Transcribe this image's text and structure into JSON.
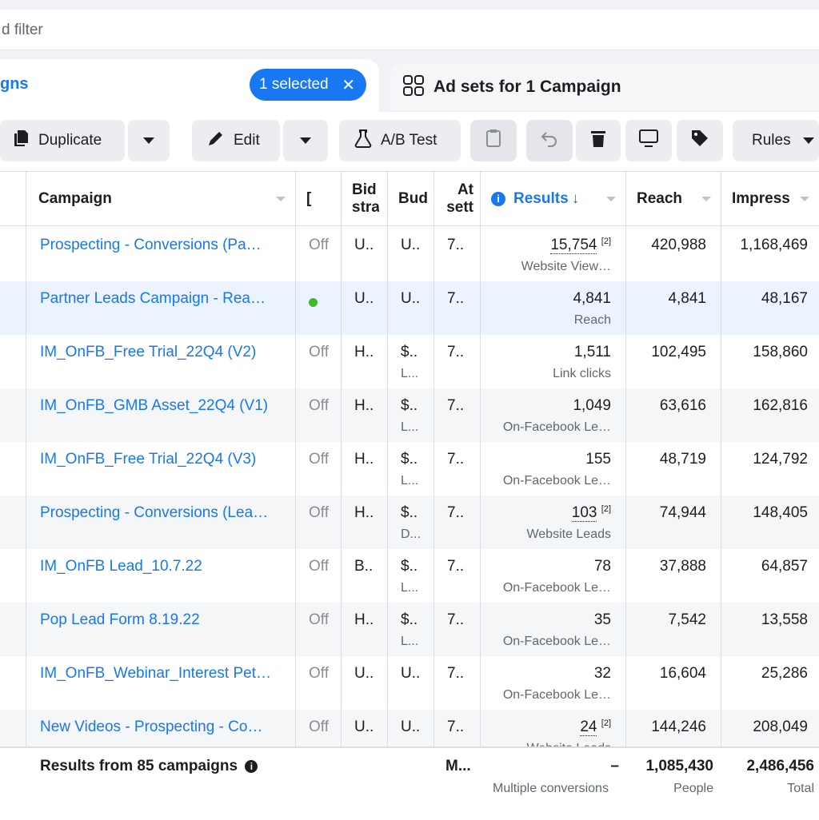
{
  "filter": {
    "placeholder": "d filter"
  },
  "tabs": {
    "campaigns_label": "gns",
    "selected_pill": "1 selected",
    "adsets_label": "Ad sets for 1 Campaign"
  },
  "toolbar": {
    "duplicate": "Duplicate",
    "edit": "Edit",
    "ab_test": "A/B Test",
    "rules": "Rules"
  },
  "columns": {
    "campaign": "Campaign",
    "delivery": "[",
    "bid_strategy": "Bid stra",
    "budget": "Bud",
    "attribution": "At sett",
    "results": "Results",
    "reach": "Reach",
    "impressions": "Impress"
  },
  "rows": [
    {
      "campaign": "Prospecting - Conversions (Pa…",
      "delivery": "Off",
      "bid": "U..",
      "budget": "U..",
      "budget_sub": "",
      "attr": "7..",
      "results": "15,754",
      "results_note": "[2]",
      "results_sub": "Website View…",
      "reach": "420,988",
      "impressions": "1,168,469"
    },
    {
      "campaign": "Partner Leads Campaign - Rea…",
      "delivery": "",
      "active": true,
      "bid": "U..",
      "budget": "U..",
      "budget_sub": "",
      "attr": "7..",
      "results": "4,841",
      "results_note": "",
      "results_sub": "Reach",
      "reach": "4,841",
      "impressions": "48,167"
    },
    {
      "campaign": "IM_OnFB_Free Trial_22Q4 (V2)",
      "delivery": "Off",
      "bid": "H..",
      "budget": "$..",
      "budget_sub": "L...",
      "attr": "7..",
      "results": "1,511",
      "results_note": "",
      "results_sub": "Link clicks",
      "reach": "102,495",
      "impressions": "158,860"
    },
    {
      "campaign": "IM_OnFB_GMB Asset_22Q4 (V1)",
      "delivery": "Off",
      "bid": "H..",
      "budget": "$..",
      "budget_sub": "L...",
      "attr": "7..",
      "results": "1,049",
      "results_note": "",
      "results_sub": "On-Facebook Le…",
      "reach": "63,616",
      "impressions": "162,816"
    },
    {
      "campaign": "IM_OnFB_Free Trial_22Q4 (V3)",
      "delivery": "Off",
      "bid": "H..",
      "budget": "$..",
      "budget_sub": "L...",
      "attr": "7..",
      "results": "155",
      "results_note": "",
      "results_sub": "On-Facebook Le…",
      "reach": "48,719",
      "impressions": "124,792"
    },
    {
      "campaign": "Prospecting - Conversions (Lea…",
      "delivery": "Off",
      "bid": "H..",
      "budget": "$..",
      "budget_sub": "D...",
      "attr": "7..",
      "results": "103",
      "results_note": "[2]",
      "results_sub": "Website Leads",
      "reach": "74,944",
      "impressions": "148,405"
    },
    {
      "campaign": "IM_OnFB Lead_10.7.22",
      "delivery": "Off",
      "bid": "B..",
      "budget": "$..",
      "budget_sub": "L...",
      "attr": "7..",
      "results": "78",
      "results_note": "",
      "results_sub": "On-Facebook Le…",
      "reach": "37,888",
      "impressions": "64,857"
    },
    {
      "campaign": "Pop Lead Form 8.19.22",
      "delivery": "Off",
      "bid": "H..",
      "budget": "$..",
      "budget_sub": "L...",
      "attr": "7..",
      "results": "35",
      "results_note": "",
      "results_sub": "On-Facebook Le…",
      "reach": "7,542",
      "impressions": "13,558"
    },
    {
      "campaign": "IM_OnFB_Webinar_Interest Pet…",
      "delivery": "Off",
      "bid": "U..",
      "budget": "U..",
      "budget_sub": "",
      "attr": "7..",
      "results": "32",
      "results_note": "",
      "results_sub": "On-Facebook Le…",
      "reach": "16,604",
      "impressions": "25,286"
    },
    {
      "campaign": "New Videos - Prospecting - Co…",
      "delivery": "Off",
      "bid": "U..",
      "budget": "U..",
      "budget_sub": "",
      "attr": "7..",
      "results": "24",
      "results_note": "[2]",
      "results_sub": "Website Leads",
      "reach": "144,246",
      "impressions": "208,049"
    }
  ],
  "footer": {
    "title": "Results from 85 campaigns",
    "attr": "M...",
    "results": "–",
    "results_sub": "Multiple conversions",
    "reach": "1,085,430",
    "reach_sub": "People",
    "impressions": "2,486,456",
    "impressions_sub": "Total"
  },
  "colors": {
    "accent": "#1877f2",
    "active_dot": "#42b72a",
    "selected_row": "#ebf3fe"
  }
}
